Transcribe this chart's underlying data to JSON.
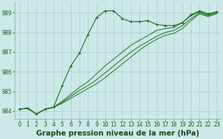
{
  "title": "Graphe pression niveau de la mer (hPa)",
  "bg_color": "#cce8e8",
  "grid_color": "#aacccc",
  "line_color": "#1a6b1a",
  "marker_color": "#1a6b1a",
  "xlim": [
    -0.5,
    23.5
  ],
  "ylim": [
    983.6,
    989.55
  ],
  "yticks": [
    984,
    985,
    986,
    987,
    988,
    989
  ],
  "xticks": [
    0,
    1,
    2,
    3,
    4,
    5,
    6,
    7,
    8,
    9,
    10,
    11,
    12,
    13,
    14,
    15,
    16,
    17,
    18,
    19,
    20,
    21,
    22,
    23
  ],
  "series": [
    [
      984.1,
      984.15,
      983.85,
      984.1,
      984.2,
      985.3,
      986.3,
      986.95,
      987.9,
      988.75,
      989.1,
      989.1,
      988.7,
      988.55,
      988.55,
      988.6,
      988.4,
      988.35,
      988.35,
      988.5,
      988.9,
      989.1,
      988.95,
      989.05
    ],
    [
      984.1,
      984.15,
      983.85,
      984.1,
      984.2,
      984.5,
      984.85,
      985.2,
      985.5,
      985.9,
      986.3,
      986.65,
      987.0,
      987.35,
      987.6,
      987.85,
      988.1,
      988.2,
      988.25,
      988.5,
      988.85,
      989.05,
      988.9,
      989.05
    ],
    [
      984.1,
      984.15,
      983.85,
      984.1,
      984.2,
      984.45,
      984.75,
      985.05,
      985.3,
      985.6,
      985.95,
      986.3,
      986.65,
      987.0,
      987.3,
      987.55,
      987.8,
      988.0,
      988.1,
      988.35,
      988.7,
      989.0,
      988.85,
      989.0
    ],
    [
      984.1,
      984.15,
      983.85,
      984.1,
      984.2,
      984.4,
      984.65,
      984.9,
      985.15,
      985.4,
      985.7,
      986.05,
      986.4,
      986.75,
      987.1,
      987.4,
      987.65,
      987.85,
      987.95,
      988.2,
      988.6,
      988.95,
      988.8,
      988.95
    ]
  ],
  "xlabel_fontsize": 7.5,
  "tick_fontsize": 5.5
}
